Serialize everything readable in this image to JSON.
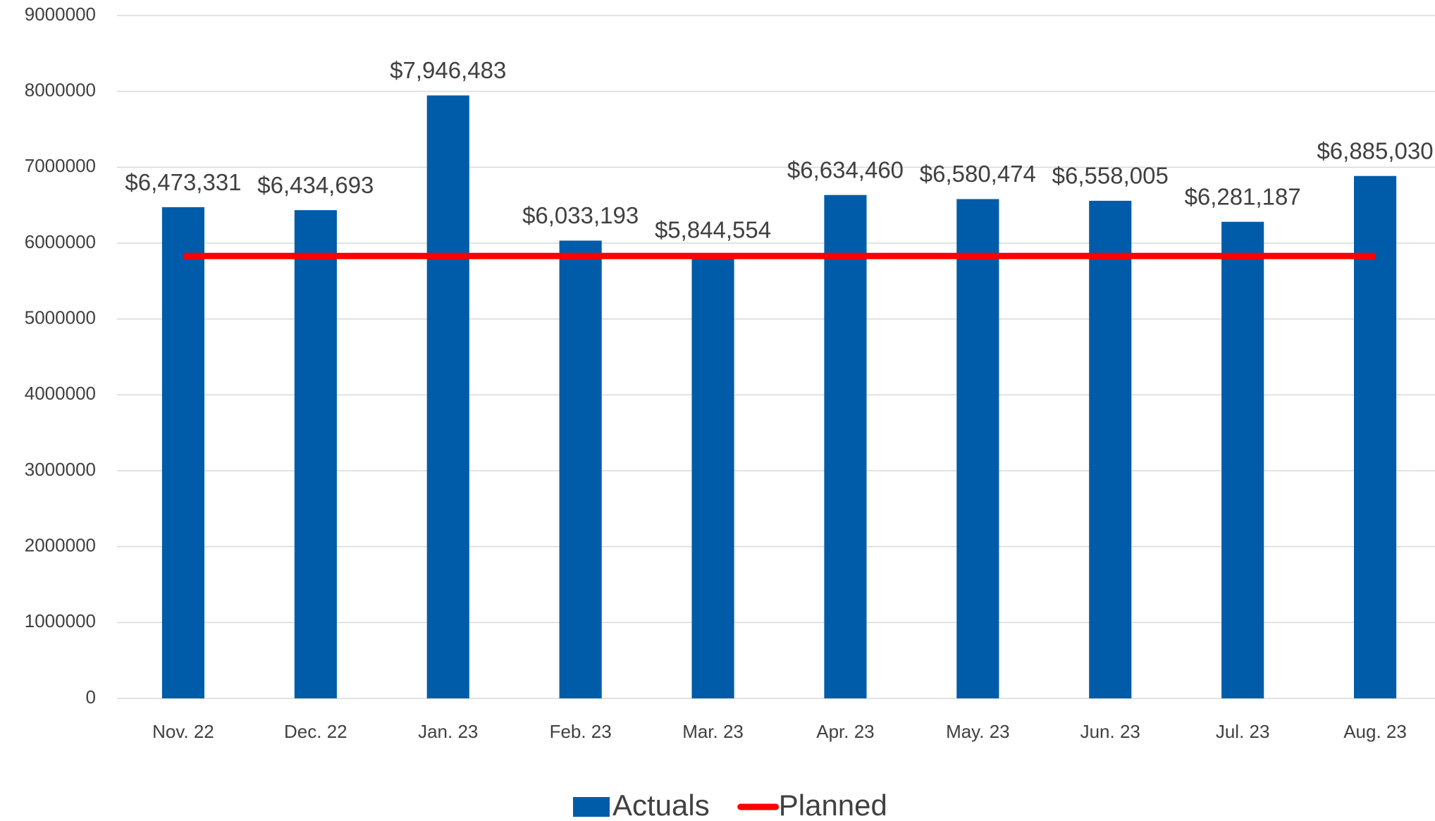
{
  "chart_data": {
    "type": "bar",
    "categories": [
      "Nov. 22",
      "Dec. 22",
      "Jan. 23",
      "Feb. 23",
      "Mar. 23",
      "Apr. 23",
      "May. 23",
      "Jun. 23",
      "Jul. 23",
      "Aug. 23"
    ],
    "series": [
      {
        "name": "Actuals",
        "type": "bar",
        "color": "#005ca9",
        "values": [
          6473331,
          6434693,
          7946483,
          6033193,
          5844554,
          6634460,
          6580474,
          6558005,
          6281187,
          6885030
        ],
        "value_labels": [
          "$6,473,331",
          "$6,434,693",
          "$7,946,483",
          "$6,033,193",
          "$5,844,554",
          "$6,634,460",
          "$6,580,474",
          "$6,558,005",
          "$6,281,187",
          "$6,885,030"
        ]
      },
      {
        "name": "Planned",
        "type": "line",
        "color": "#ff0000",
        "values": [
          5830000,
          5830000,
          5830000,
          5830000,
          5830000,
          5830000,
          5830000,
          5830000,
          5830000,
          5830000
        ]
      }
    ],
    "ylim": [
      0,
      9000000
    ],
    "yticks": [
      0,
      1000000,
      2000000,
      3000000,
      4000000,
      5000000,
      6000000,
      7000000,
      8000000,
      9000000
    ],
    "grid": true,
    "legend": "bottom"
  }
}
